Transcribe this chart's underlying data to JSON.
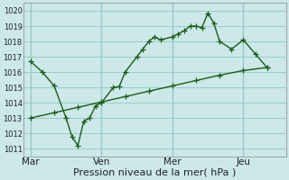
{
  "title": "Pression niveau de la mer( hPa )",
  "background_color": "#cce8e8",
  "grid_color": "#99cccc",
  "line_color": "#1a5c1a",
  "ylim": [
    1010.5,
    1020.5
  ],
  "yticks": [
    1011,
    1012,
    1013,
    1014,
    1015,
    1016,
    1017,
    1018,
    1019,
    1020
  ],
  "day_labels": [
    "Mar",
    "Ven",
    "Mer",
    "Jeu"
  ],
  "day_positions": [
    0,
    3,
    6,
    9
  ],
  "xlim": [
    -0.3,
    10.8
  ],
  "line1_x": [
    0,
    0.5,
    1.0,
    1.5,
    1.75,
    2.0,
    2.25,
    2.5,
    2.75,
    3.0,
    3.5,
    3.75,
    4.0,
    4.5,
    4.75,
    5.0,
    5.25,
    5.5,
    6.0,
    6.25,
    6.5,
    6.75,
    7.0,
    7.25,
    7.5,
    7.75,
    8.0,
    8.5,
    9.0,
    9.5,
    10.0
  ],
  "line1_y": [
    1016.7,
    1016.0,
    1015.1,
    1013.0,
    1011.8,
    1011.2,
    1012.8,
    1013.0,
    1013.8,
    1014.0,
    1015.0,
    1015.05,
    1016.0,
    1017.0,
    1017.5,
    1018.0,
    1018.3,
    1018.1,
    1018.3,
    1018.5,
    1018.7,
    1019.0,
    1019.0,
    1018.9,
    1019.85,
    1019.2,
    1018.0,
    1017.5,
    1018.1,
    1017.2,
    1016.3
  ],
  "line2_x": [
    0,
    1,
    2,
    3,
    4,
    5,
    6,
    7,
    8,
    9,
    10
  ],
  "line2_y": [
    1013.0,
    1013.35,
    1013.7,
    1014.05,
    1014.4,
    1014.75,
    1015.1,
    1015.45,
    1015.8,
    1016.1,
    1016.3
  ],
  "vline_positions": [
    0,
    3,
    6,
    9
  ],
  "marker_size": 4,
  "line_width": 1.0,
  "ylabel_fontsize": 6,
  "xlabel_fontsize": 8,
  "xtick_fontsize": 7.5
}
